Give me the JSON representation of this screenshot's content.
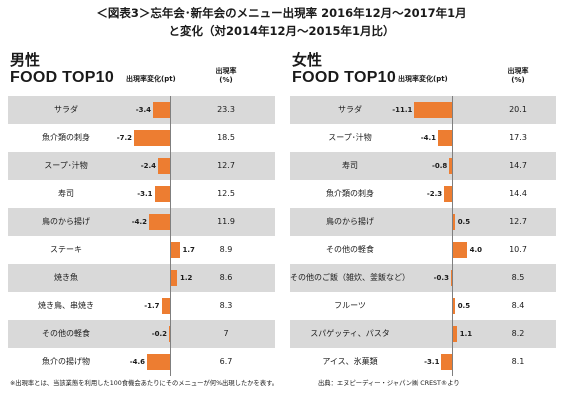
{
  "title": {
    "line1": "＜図表3＞忘年会･新年会のメニュー出現率 2016年12月～2017年1月",
    "line2": "と変化（対2014年12月～2015年1月比）"
  },
  "column_change_label": "出現率変化(pt)",
  "column_rate_label_line1": "出現率",
  "column_rate_label_line2": "(%)",
  "bar_color": "#ed7d31",
  "footnote_left": "※出現率とは、当該業態を利用した100食機会あたりにそのメニューが何%出現したかを表す。",
  "footnote_right": "出典：エヌピーディー・ジャパン㈱ CREST®より",
  "chart_data": [
    {
      "type": "bar",
      "heading": "男性",
      "subheading": "FOOD TOP10",
      "categories": [
        "サラダ",
        "魚介類の刺身",
        "スープ･汁物",
        "寿司",
        "鳥のから揚げ",
        "ステーキ",
        "焼き魚",
        "焼き鳥、串焼き",
        "その他の軽食",
        "魚介の揚げ物"
      ],
      "change_pt": [
        -3.4,
        -7.2,
        -2.4,
        -3.1,
        -4.2,
        1.7,
        1.2,
        -1.7,
        -0.2,
        -4.6
      ],
      "change_labels": [
        "-3.4",
        "-7.2",
        "-2.4",
        "-3.1",
        "-4.2",
        "1.7",
        "1.2",
        "-1.7",
        "-0.2",
        "-4.6"
      ],
      "rate_pct": [
        "23.3",
        "18.5",
        "12.7",
        "12.5",
        "11.9",
        "8.9",
        "8.6",
        "8.3",
        "7",
        "6.7"
      ]
    },
    {
      "type": "bar",
      "heading": "女性",
      "subheading": "FOOD TOP10",
      "categories": [
        "サラダ",
        "スープ･汁物",
        "寿司",
        "魚介類の刺身",
        "鳥のから揚げ",
        "その他の軽食",
        "その他のご飯（雑炊、釜飯など）",
        "フルーツ",
        "スパゲッティ、パスタ",
        "アイス、氷菓類"
      ],
      "change_pt": [
        -11.1,
        -4.1,
        -0.8,
        -2.3,
        0.5,
        4.0,
        -0.3,
        0.5,
        1.1,
        -3.1
      ],
      "change_labels": [
        "-11.1",
        "-4.1",
        "-0.8",
        "-2.3",
        "0.5",
        "4.0",
        "-0.3",
        "0.5",
        "1.1",
        "-3.1"
      ],
      "rate_pct": [
        "20.1",
        "17.3",
        "14.7",
        "14.4",
        "12.7",
        "10.7",
        "8.5",
        "8.4",
        "8.2",
        "8.1"
      ]
    }
  ]
}
